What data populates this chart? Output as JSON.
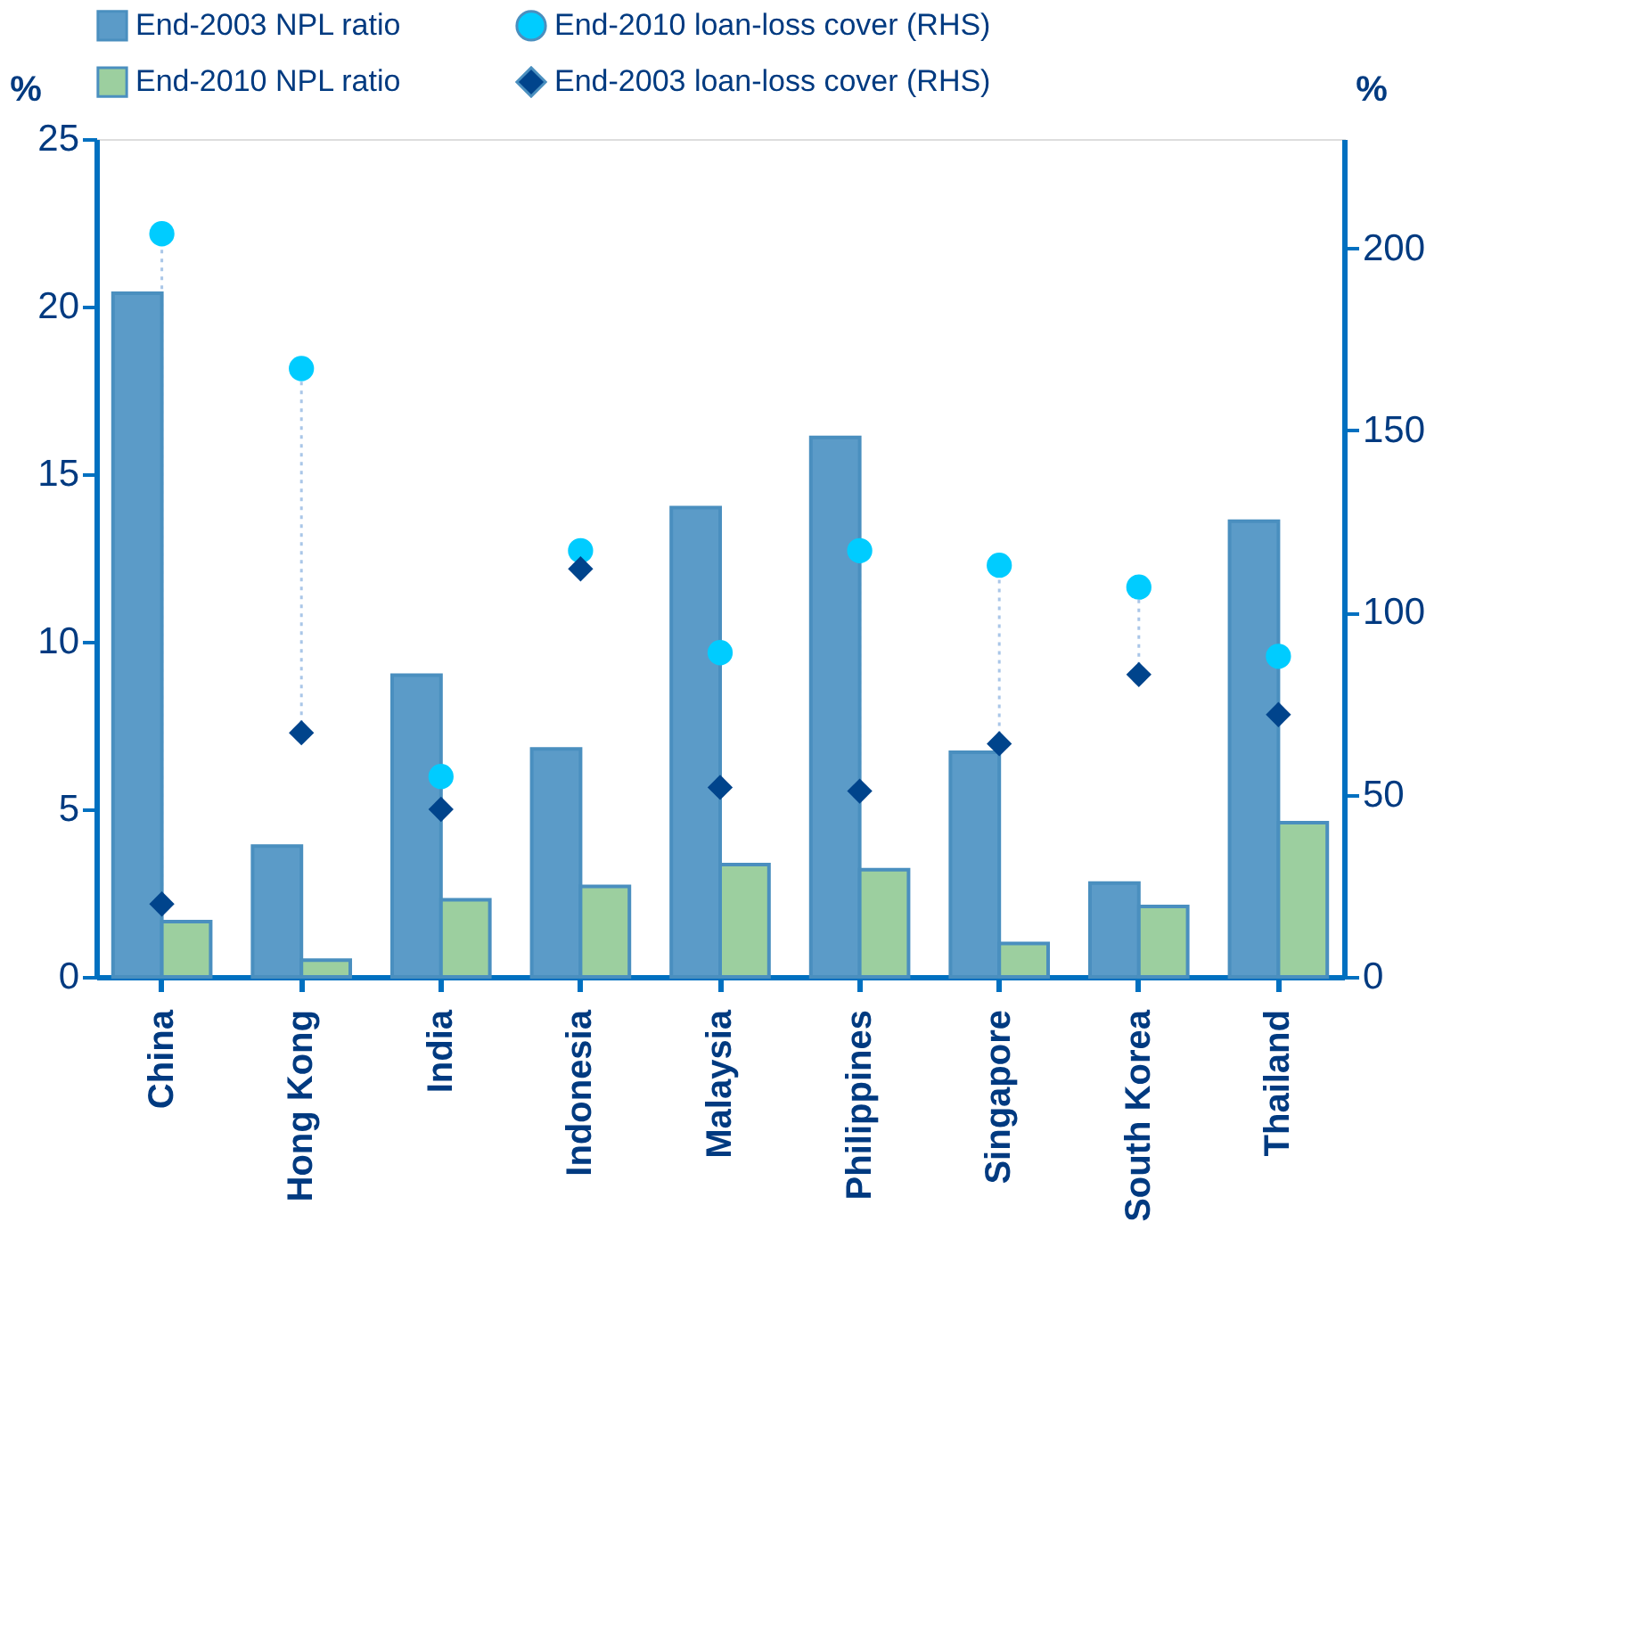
{
  "chart_data": {
    "type": "bar",
    "categories": [
      "China",
      "Hong Kong",
      "India",
      "Indonesia",
      "Malaysia",
      "Philippines",
      "Singapore",
      "South Korea",
      "Thailand"
    ],
    "ylabel": "%",
    "y2label": "%",
    "ylim": [
      0,
      25
    ],
    "yticks": [
      0,
      5,
      10,
      15,
      20,
      25
    ],
    "y2lim": [
      0,
      230
    ],
    "y2ticks": [
      0,
      50,
      100,
      150,
      200
    ],
    "legend": "top",
    "grid": false,
    "series": [
      {
        "name": "End-2003 NPL ratio",
        "color": "#5b9bc8",
        "values": [
          20.4,
          3.9,
          9.0,
          6.8,
          14.0,
          16.1,
          6.7,
          2.8,
          13.6
        ]
      },
      {
        "name": "End-2010 loan-loss cover (RHS)",
        "type": "scatter",
        "axis": "y2",
        "marker": "circle",
        "color": "#00ccff",
        "values": [
          204,
          167,
          55,
          117,
          89,
          117,
          113,
          107,
          88
        ]
      },
      {
        "name": "End-2010 NPL ratio",
        "color": "#9ccf9f",
        "values": [
          1.65,
          0.5,
          2.3,
          2.7,
          3.35,
          3.2,
          1.0,
          2.1,
          4.6
        ]
      },
      {
        "name": "End-2003 loan-loss cover (RHS)",
        "type": "scatter",
        "axis": "y2",
        "marker": "diamond",
        "color": "#00448c",
        "values": [
          20,
          67,
          46,
          112,
          52,
          51,
          64,
          83,
          72
        ]
      }
    ]
  }
}
